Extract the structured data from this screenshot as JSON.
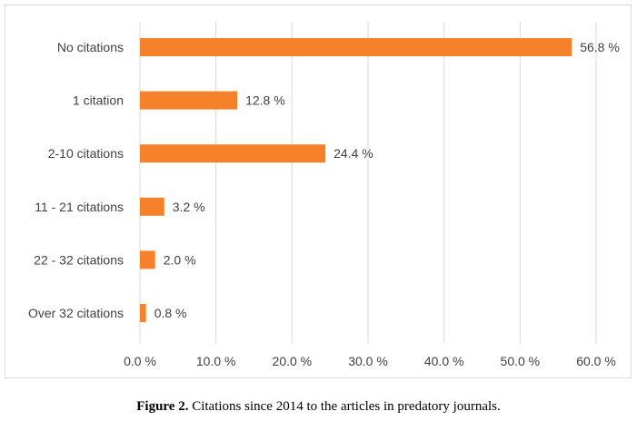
{
  "chart_data": {
    "type": "bar",
    "orientation": "horizontal",
    "categories": [
      "No citations",
      "1 citation",
      "2-10 citations",
      "11 - 21 citations",
      "22 - 32 citations",
      "Over 32 citations"
    ],
    "values": [
      56.8,
      12.8,
      24.4,
      3.2,
      2.0,
      0.8
    ],
    "data_labels": [
      "56.8 %",
      "12.8 %",
      "24.4 %",
      "3.2 %",
      "2.0 %",
      "0.8 %"
    ],
    "x_ticks": [
      0,
      10,
      20,
      30,
      40,
      50,
      60
    ],
    "x_tick_labels": [
      "0.0 %",
      "10.0 %",
      "20.0 %",
      "30.0 %",
      "40.0 %",
      "50.0 %",
      "60.0 %"
    ],
    "xlim": [
      0,
      60
    ],
    "grid": "vertical",
    "bar_color": "#f5812a",
    "gridline_color": "#d9d9d9",
    "title": "",
    "xlabel": "",
    "ylabel": ""
  },
  "caption": {
    "prefix": "Figure 2.",
    "text": " Citations since 2014 to the articles in predatory journals."
  }
}
